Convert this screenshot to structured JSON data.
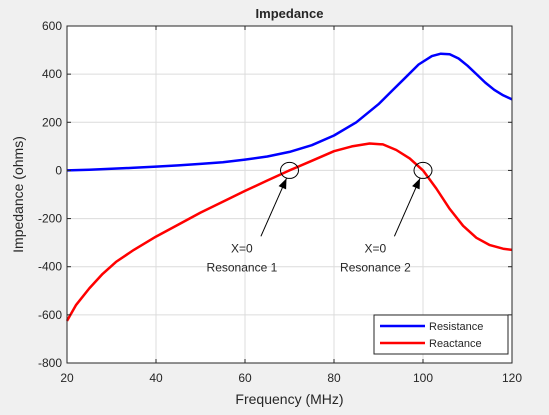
{
  "chart_data": {
    "type": "line",
    "title": "Impedance",
    "xlabel": "Frequency (MHz)",
    "ylabel": "Impedance (ohms)",
    "xlim": [
      20,
      120
    ],
    "ylim": [
      -800,
      600
    ],
    "xticks": [
      20,
      40,
      60,
      80,
      100,
      120
    ],
    "yticks": [
      -800,
      -600,
      -400,
      -200,
      0,
      200,
      400,
      600
    ],
    "xtick_labels": [
      "20",
      "40",
      "60",
      "80",
      "100",
      "120"
    ],
    "ytick_labels": [
      "-800",
      "-600",
      "-400",
      "-200",
      "0",
      "200",
      "400",
      "600"
    ],
    "grid": true,
    "legend_position": "bottom-right",
    "series": [
      {
        "name": "Resistance",
        "color": "#0000ff",
        "x": [
          20,
          25,
          30,
          35,
          40,
          45,
          50,
          55,
          60,
          65,
          70,
          75,
          80,
          85,
          90,
          93,
          96,
          99,
          102,
          104,
          106,
          108,
          110,
          112,
          114,
          116,
          118,
          120
        ],
        "y": [
          0,
          3,
          7,
          11,
          16,
          21,
          27,
          34,
          45,
          58,
          77,
          105,
          145,
          200,
          275,
          330,
          385,
          440,
          475,
          485,
          483,
          465,
          435,
          400,
          365,
          335,
          312,
          295
        ]
      },
      {
        "name": "Reactance",
        "color": "#ff0000",
        "x": [
          20,
          22,
          25,
          28,
          31,
          35,
          40,
          45,
          50,
          55,
          60,
          65,
          70,
          75,
          80,
          84,
          88,
          91,
          94,
          97,
          100,
          103,
          106,
          109,
          112,
          115,
          118,
          120
        ],
        "y": [
          -625,
          -560,
          -490,
          -430,
          -380,
          -330,
          -275,
          -225,
          -175,
          -130,
          -85,
          -42,
          0,
          40,
          80,
          100,
          112,
          108,
          85,
          50,
          0,
          -75,
          -160,
          -230,
          -280,
          -310,
          -325,
          -330
        ]
      }
    ],
    "annotations": [
      {
        "label_top": "X=0",
        "label_bottom": "Resonance 1",
        "circle_x": 70,
        "circle_y": 0,
        "text_x": 62,
        "text_y": -340
      },
      {
        "label_top": "X=0",
        "label_bottom": "Resonance 2",
        "circle_x": 100,
        "circle_y": 0,
        "text_x": 92,
        "text_y": -340
      }
    ]
  }
}
